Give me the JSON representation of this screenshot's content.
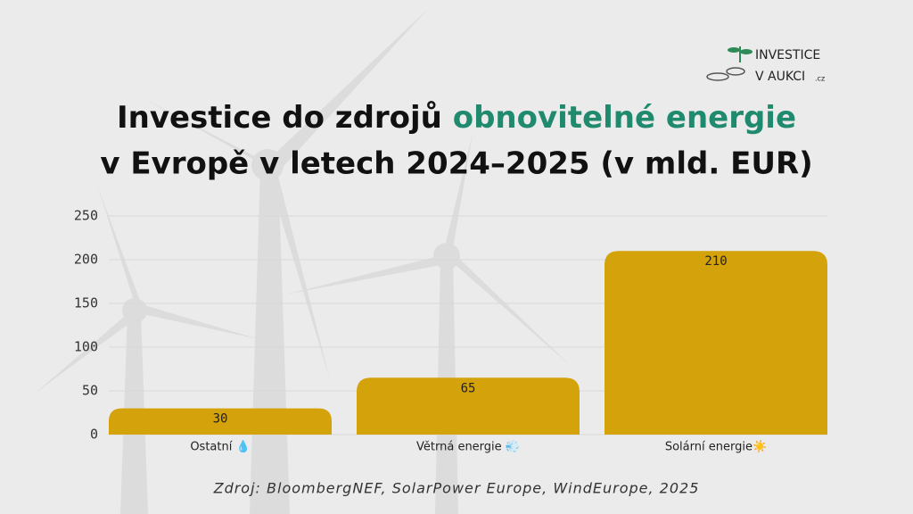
{
  "chart_data": {
    "type": "bar",
    "title": {
      "part1": "Investice do zdrojů",
      "highlight": "obnovitelné energie",
      "line2": "v Evropě v letech 2024–2025 (v mld. EUR)"
    },
    "categories": [
      "Ostatní 💧",
      "Větrná energie 💨",
      "Solární energie☀️"
    ],
    "values": [
      30,
      65,
      210
    ],
    "color": "#d4a20a",
    "ylim": [
      0,
      250
    ],
    "yticks": [
      0,
      50,
      100,
      150,
      200,
      250
    ],
    "grid": true,
    "source": "Zdroj: BloombergNEF, SolarPower Europe, WindEurope, 2025"
  },
  "logo": {
    "line1": "INVESTICE",
    "line2": "V AUKCI",
    "domain": ".cz"
  }
}
